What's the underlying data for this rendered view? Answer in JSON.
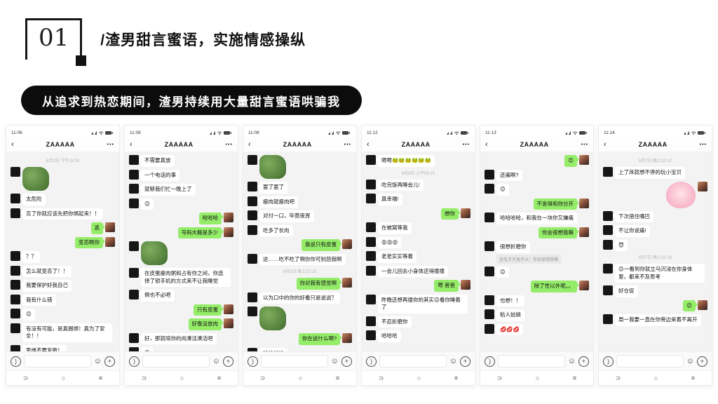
{
  "header": {
    "number": "01",
    "title": "/渣男甜言蜜语，实施情感操纵"
  },
  "banner": {
    "text": "从追求到热恋期间，渣男持续用大量甜言蜜语哄骗我"
  },
  "colors": {
    "accent_green": "#95ec69",
    "banner_black": "#0c0c0c",
    "chat_bg": "#f3f3f3"
  },
  "icons": {
    "back": "‹",
    "more": "•••",
    "emoji": "☺",
    "plus": "+",
    "nav_back": "⊃",
    "nav_home": "○",
    "nav_recent": "≡"
  },
  "phones": [
    {
      "status_time": "11:06",
      "title": "ZAAAAA",
      "messages": [
        {
          "type": "time",
          "text": "6月2日 下午11:06"
        },
        {
          "type": "image",
          "side": "left"
        },
        {
          "type": "text",
          "side": "left",
          "text": "太危险"
        },
        {
          "type": "text",
          "side": "left",
          "text": "见了你就应该先把你绑起来！！"
        },
        {
          "type": "text",
          "side": "right",
          "text": "逃"
        },
        {
          "type": "text",
          "side": "right",
          "text": "变态啊你"
        },
        {
          "type": "text",
          "side": "left",
          "text": "？？"
        },
        {
          "type": "text",
          "side": "left",
          "text": "怎么就变态了！！"
        },
        {
          "type": "text",
          "side": "left",
          "text": "我要保护好我自己"
        },
        {
          "type": "text",
          "side": "left",
          "text": "我有什么错"
        },
        {
          "type": "text",
          "side": "left",
          "text": "😊"
        },
        {
          "type": "text",
          "side": "left",
          "text": "有没有可能，是真捆绑！真为了安全！！"
        },
        {
          "type": "text",
          "side": "left",
          "text": "思维不要发散！"
        }
      ]
    },
    {
      "status_time": "11:08",
      "title": "ZAAAAA",
      "messages": [
        {
          "type": "text",
          "side": "left",
          "text": "不需要真放"
        },
        {
          "type": "text",
          "side": "left",
          "text": "一个电话的事"
        },
        {
          "type": "text",
          "side": "left",
          "text": "就够我们忙一晚上了"
        },
        {
          "type": "text",
          "side": "left",
          "text": "😊"
        },
        {
          "type": "text",
          "side": "right",
          "text": "哈哈哈"
        },
        {
          "type": "text",
          "side": "right",
          "text": "号码大概是多少"
        },
        {
          "type": "image",
          "side": "left"
        },
        {
          "type": "text",
          "side": "left",
          "text": "在皮蛋瘦肉粥和占有你之间，你选择了锁手机的方式来不让我睡觉"
        },
        {
          "type": "text",
          "side": "left",
          "text": "倒也不必吧"
        },
        {
          "type": "text",
          "side": "right",
          "text": "只有皮蛋"
        },
        {
          "type": "text",
          "side": "right",
          "text": "好像没放肉"
        },
        {
          "type": "text",
          "side": "left",
          "text": "好，那就啃你的肉凑活凑活吧"
        },
        {
          "type": "text",
          "side": "left",
          "text": "😄"
        }
      ]
    },
    {
      "status_time": "11:08",
      "title": "ZAAAAA",
      "messages": [
        {
          "type": "image",
          "side": "left"
        },
        {
          "type": "text",
          "side": "left",
          "text": "罢了罢了"
        },
        {
          "type": "text",
          "side": "left",
          "text": "瘦肉就瘦肉吧"
        },
        {
          "type": "text",
          "side": "left",
          "text": "对付一口，毕竟夜宵"
        },
        {
          "type": "text",
          "side": "left",
          "text": "吃多了长肉"
        },
        {
          "type": "text",
          "side": "right",
          "text": "我说只有皮蛋"
        },
        {
          "type": "text",
          "side": "left",
          "text": "这……吃不吃了啊你你可别怨我啊"
        },
        {
          "type": "time",
          "text": "6月5日 晚上22:15"
        },
        {
          "type": "text",
          "side": "right",
          "text": "你对我有感觉啊"
        },
        {
          "type": "text",
          "side": "left",
          "text": "以为口中的你的好看只是说说？"
        },
        {
          "type": "image",
          "side": "left"
        },
        {
          "type": "text",
          "side": "right",
          "text": "你在说什么啊?"
        },
        {
          "type": "text",
          "side": "left",
          "text": "哈哈哈哈"
        }
      ]
    },
    {
      "status_time": "11:12",
      "title": "ZAAAAA",
      "messages": [
        {
          "type": "text",
          "side": "left",
          "text": "嗯嗯🐸🐸🐸🐸🐸🐸"
        },
        {
          "type": "time",
          "text": "6月6日 上午08:15"
        },
        {
          "type": "text",
          "side": "left",
          "text": "吃完饭再睡会儿!"
        },
        {
          "type": "text",
          "side": "left",
          "text": "真幸福!"
        },
        {
          "type": "text",
          "side": "right",
          "text": "想你"
        },
        {
          "type": "text",
          "side": "left",
          "text": "在被窝等我"
        },
        {
          "type": "text",
          "side": "left",
          "text": "😝😝😝"
        },
        {
          "type": "text",
          "side": "left",
          "text": "老老实实等着"
        },
        {
          "type": "text",
          "side": "left",
          "text": "一会儿回去小身体还得搂搂"
        },
        {
          "type": "text",
          "side": "right",
          "text": "嗯 爸爸"
        },
        {
          "type": "text",
          "side": "left",
          "text": "昨晚还想再搂你的其实😊看你睡着了"
        },
        {
          "type": "text",
          "side": "left",
          "text": "不忍折磨你"
        },
        {
          "type": "text",
          "side": "left",
          "text": "哈哈哈"
        }
      ]
    },
    {
      "status_time": "11:13",
      "title": "ZAAAAA",
      "messages": [
        {
          "type": "text",
          "side": "right",
          "text": "😊"
        },
        {
          "type": "text",
          "side": "left",
          "text": "还痛啊?"
        },
        {
          "type": "text",
          "side": "left",
          "text": "😊"
        },
        {
          "type": "text",
          "side": "right",
          "text": "不舍得和你分开"
        },
        {
          "type": "text",
          "side": "left",
          "text": "哈哈哈哈，和我在一块你又嫌痛"
        },
        {
          "type": "text",
          "side": "right",
          "text": "你会很想我嘛"
        },
        {
          "type": "text",
          "side": "left",
          "text": "很想折磨你"
        },
        {
          "type": "quote",
          "text": "金毛王大兔子以：你会很想我嘛"
        },
        {
          "type": "text",
          "side": "left",
          "text": "😊"
        },
        {
          "type": "text",
          "side": "right",
          "text": "除了性以外呢。。"
        },
        {
          "type": "text",
          "side": "left",
          "text": "也想！！"
        },
        {
          "type": "text",
          "side": "left",
          "text": "粘人姑娘"
        },
        {
          "type": "text",
          "side": "left",
          "text": "💋💋💋"
        }
      ]
    },
    {
      "status_time": "11:14",
      "title": "ZAAAAA",
      "messages": [
        {
          "type": "time",
          "text": "6月7日 晚上20:12"
        },
        {
          "type": "text",
          "side": "left",
          "text": "上了床就想不停的玩小宝贝"
        },
        {
          "type": "sticker",
          "side": "right"
        },
        {
          "type": "text",
          "side": "left",
          "text": "下次捂住嘴巴"
        },
        {
          "type": "text",
          "side": "left",
          "text": "不让你说痛!"
        },
        {
          "type": "text",
          "side": "left",
          "text": "😈"
        },
        {
          "type": "time",
          "text": "6月7日 晚上20:18"
        },
        {
          "type": "text",
          "side": "left",
          "text": "😊一看到你就立马沉浸在你身体里，都来不及思考"
        },
        {
          "type": "text",
          "side": "left",
          "text": "好仓促"
        },
        {
          "type": "text",
          "side": "right",
          "text": "😊"
        },
        {
          "type": "text",
          "side": "left",
          "text": "周一我要一直在你旁边呆着不离开"
        }
      ]
    }
  ]
}
